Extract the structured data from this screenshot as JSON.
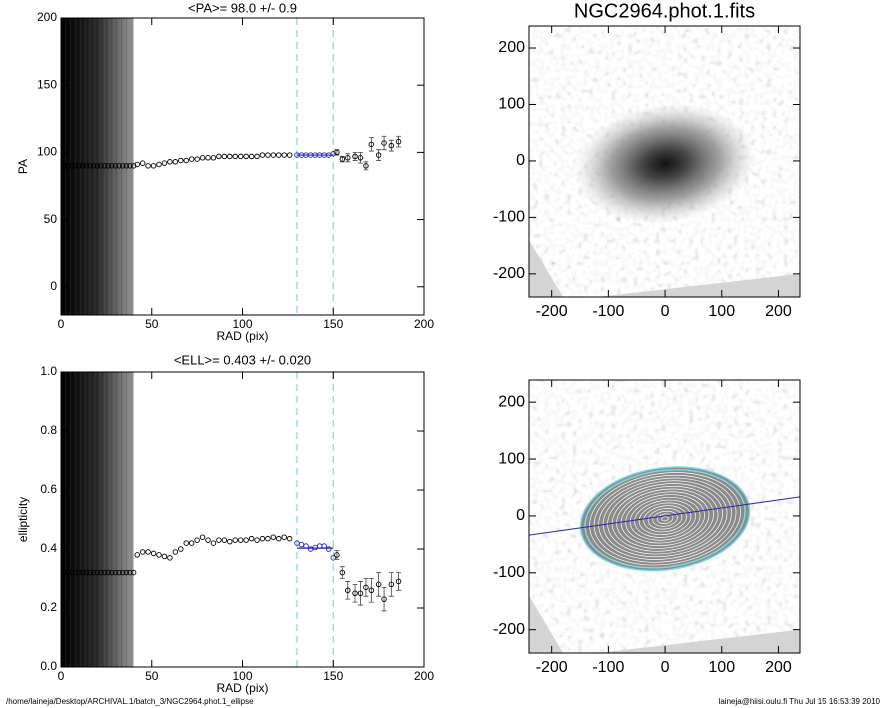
{
  "chart_data": [
    {
      "type": "scatter",
      "title": "<PA>=  98.0 +/-   0.9",
      "x_label": "RAD (pix)",
      "y_label": "PA",
      "xlim": [
        0,
        200
      ],
      "ylim": [
        -21,
        200
      ],
      "xticks": [
        0,
        50,
        100,
        150,
        200
      ],
      "yticks": [
        0,
        50,
        100,
        150,
        200
      ],
      "shade_range": [
        0,
        40
      ],
      "fit_range": [
        130,
        150
      ],
      "fit_value": 98.0,
      "fit_color": "#2424b0",
      "range_color": "#7fd6e6",
      "color": "#000000",
      "x": [
        2,
        4,
        6,
        8,
        10,
        12,
        14,
        16,
        18,
        20,
        22,
        24,
        26,
        28,
        30,
        32,
        34,
        36,
        38,
        40,
        42,
        45,
        48,
        51,
        54,
        57,
        60,
        63,
        66,
        69,
        72,
        75,
        78,
        81,
        84,
        87,
        90,
        93,
        96,
        99,
        102,
        105,
        108,
        111,
        114,
        117,
        120,
        123,
        126,
        130,
        132.5,
        135,
        137.5,
        140,
        142.5,
        145,
        147.5,
        150,
        152,
        155,
        158,
        162,
        165,
        168,
        171,
        175,
        178,
        182,
        186
      ],
      "values": [
        90,
        90,
        90,
        90,
        90,
        90,
        90,
        90,
        90,
        90,
        90,
        90,
        90,
        90,
        90,
        90,
        90,
        90,
        90,
        90,
        91,
        92,
        90,
        90,
        91,
        92,
        93,
        93,
        94,
        94,
        95,
        95,
        96,
        96,
        96,
        97,
        97,
        97,
        97,
        97,
        97,
        97,
        97,
        98,
        98,
        98,
        98,
        98,
        98,
        98,
        98,
        98,
        98,
        98,
        98,
        98,
        98,
        99,
        100,
        95,
        96,
        97,
        96,
        90,
        106,
        98,
        107,
        105,
        108
      ],
      "errors": [
        null,
        null,
        null,
        null,
        null,
        null,
        null,
        null,
        null,
        null,
        null,
        null,
        null,
        null,
        null,
        null,
        null,
        null,
        null,
        null,
        null,
        null,
        null,
        null,
        null,
        null,
        null,
        null,
        null,
        null,
        null,
        null,
        null,
        null,
        null,
        null,
        null,
        null,
        null,
        null,
        null,
        null,
        null,
        null,
        null,
        null,
        null,
        null,
        null,
        null,
        null,
        null,
        null,
        null,
        null,
        null,
        null,
        null,
        2,
        2,
        3,
        3,
        4,
        3,
        5,
        4,
        5,
        4,
        4
      ]
    },
    {
      "type": "scatter",
      "title": "<ELL>= 0.403 +/-  0.020",
      "x_label": "RAD (pix)",
      "y_label": "ellipticity",
      "xlim": [
        0,
        200
      ],
      "ylim": [
        0,
        1
      ],
      "xticks": [
        0,
        50,
        100,
        150,
        200
      ],
      "yticks": [
        {
          "value": 0,
          "label": "0.0"
        },
        0.2,
        0.4,
        0.6,
        0.8,
        {
          "value": 1,
          "label": "1.0"
        }
      ],
      "shade_range": [
        0,
        40
      ],
      "fit_range": [
        130,
        150
      ],
      "fit_value": 0.403,
      "fit_color": "#2424b0",
      "range_color": "#7fd6e6",
      "color": "#000000",
      "x": [
        2,
        4,
        6,
        8,
        10,
        12,
        14,
        16,
        18,
        20,
        22,
        24,
        26,
        28,
        30,
        32,
        34,
        36,
        38,
        40,
        42,
        45,
        48,
        51,
        54,
        57,
        60,
        63,
        66,
        69,
        72,
        75,
        78,
        81,
        84,
        87,
        90,
        93,
        96,
        99,
        102,
        105,
        108,
        111,
        114,
        117,
        120,
        123,
        126,
        130,
        132.5,
        135,
        137.5,
        140,
        142.5,
        145,
        147.5,
        150,
        152,
        155,
        158,
        162,
        165,
        168,
        171,
        175,
        178,
        182,
        186
      ],
      "values": [
        0.32,
        0.32,
        0.32,
        0.32,
        0.32,
        0.32,
        0.32,
        0.32,
        0.32,
        0.32,
        0.32,
        0.32,
        0.32,
        0.32,
        0.32,
        0.32,
        0.32,
        0.32,
        0.32,
        0.32,
        0.38,
        0.39,
        0.39,
        0.385,
        0.38,
        0.375,
        0.37,
        0.39,
        0.4,
        0.42,
        0.42,
        0.43,
        0.44,
        0.43,
        0.42,
        0.43,
        0.43,
        0.425,
        0.43,
        0.43,
        0.43,
        0.435,
        0.43,
        0.435,
        0.435,
        0.44,
        0.435,
        0.44,
        0.435,
        0.42,
        0.415,
        0.41,
        0.4,
        0.405,
        0.41,
        0.41,
        0.4,
        0.37,
        0.38,
        0.32,
        0.26,
        0.25,
        0.25,
        0.27,
        0.26,
        0.28,
        0.23,
        0.28,
        0.29
      ],
      "errors": [
        null,
        null,
        null,
        null,
        null,
        null,
        null,
        null,
        null,
        null,
        null,
        null,
        null,
        null,
        null,
        null,
        null,
        null,
        null,
        null,
        null,
        null,
        null,
        null,
        null,
        null,
        null,
        null,
        null,
        null,
        null,
        null,
        null,
        null,
        null,
        null,
        null,
        null,
        null,
        null,
        null,
        null,
        null,
        null,
        null,
        null,
        null,
        null,
        null,
        null,
        null,
        null,
        null,
        null,
        null,
        null,
        null,
        null,
        0.015,
        0.02,
        0.03,
        0.03,
        0.04,
        0.03,
        0.04,
        0.04,
        0.04,
        0.04,
        0.03
      ]
    },
    {
      "type": "image",
      "title": "NGC2964.phot.1.fits",
      "xlim": [
        -240,
        238
      ],
      "ylim": [
        -241,
        239
      ],
      "xticks": [
        -200,
        -100,
        0,
        100,
        200
      ],
      "yticks": [
        -200,
        -100,
        0,
        100,
        200
      ]
    },
    {
      "type": "image",
      "contours": true,
      "xlim": [
        -240,
        238
      ],
      "ylim": [
        -241,
        239
      ],
      "xticks": [
        -200,
        -100,
        0,
        100,
        200
      ],
      "yticks": [
        -200,
        -100,
        0,
        100,
        200
      ]
    }
  ],
  "footer": {
    "left": "/home/laineja/Desktop/ARCHIVAL.1/batch_3/NGC2964.phot.1_ellipse",
    "right": "laineja@hiisi.oulu.fi  Thu Jul 15 16:53:39 2010"
  }
}
